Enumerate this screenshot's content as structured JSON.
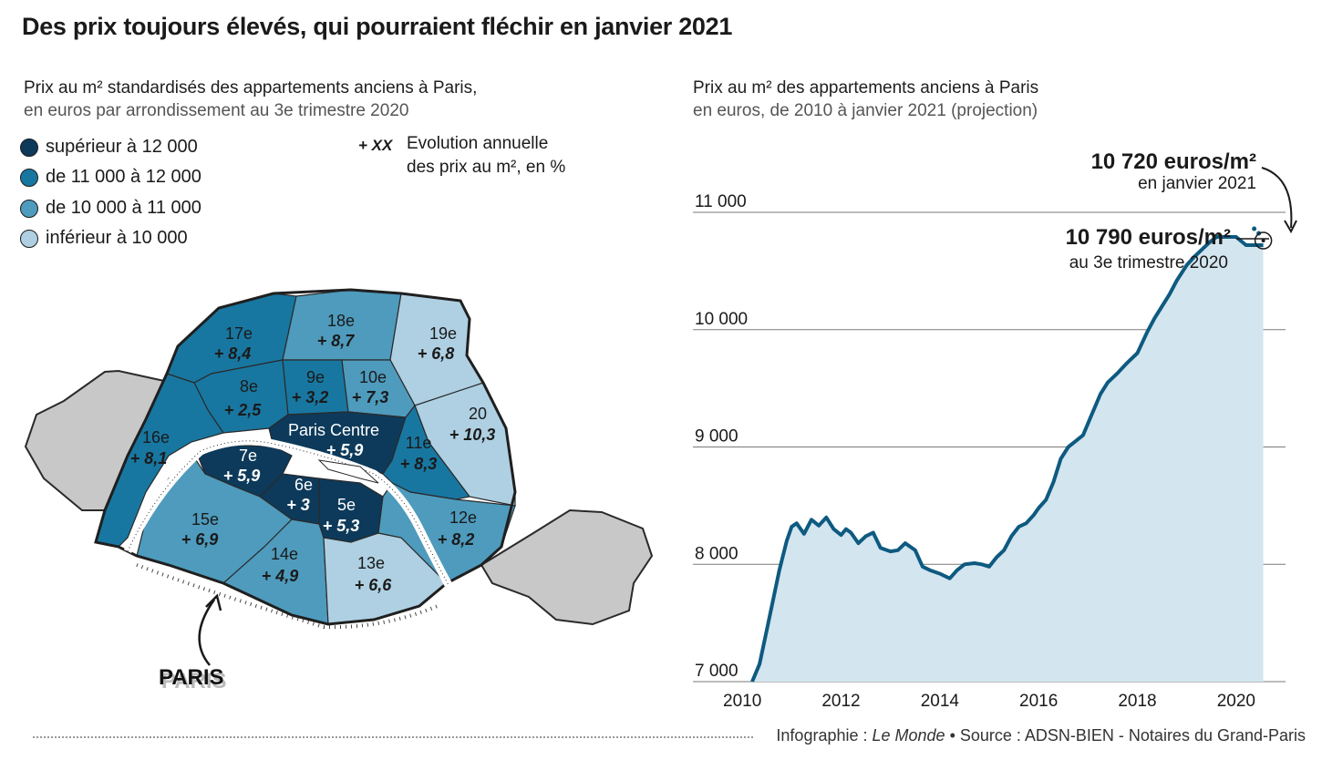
{
  "title": "Des prix toujours élevés, qui pourraient fléchir en janvier 2021",
  "map": {
    "subtitle_line1": "Prix au m² standardisés des appartements anciens à Paris,",
    "subtitle_line2": "en euros par arrondissement au 3e trimestre 2020",
    "legend": [
      {
        "label": "supérieur à 12 000",
        "color": "#0d3a5a"
      },
      {
        "label": "de 11 000 à 12 000",
        "color": "#1877a1"
      },
      {
        "label": "de 10 000 à 11 000",
        "color": "#4e9bbd"
      },
      {
        "label": "inférieur à 10 000",
        "color": "#aed0e2"
      }
    ],
    "evolution_key": "+ XX",
    "evolution_line1": "Evolution annuelle",
    "evolution_line2": "des prix au m², en %",
    "arrondissements": [
      {
        "name": "17e",
        "value": "+ 8,4"
      },
      {
        "name": "18e",
        "value": "+ 8,7"
      },
      {
        "name": "19e",
        "value": "+ 6,8"
      },
      {
        "name": "8e",
        "value": "+ 2,5"
      },
      {
        "name": "9e",
        "value": "+ 3,2"
      },
      {
        "name": "10e",
        "value": "+ 7,3"
      },
      {
        "name": "20",
        "value": "+ 10,3"
      },
      {
        "name": "16e",
        "value": "+ 8,1"
      },
      {
        "name": "Paris Centre",
        "value": "+ 5,9"
      },
      {
        "name": "11e",
        "value": "+ 8,3"
      },
      {
        "name": "7e",
        "value": "+ 5,9"
      },
      {
        "name": "6e",
        "value": "+ 3"
      },
      {
        "name": "5e",
        "value": "+ 5,3"
      },
      {
        "name": "15e",
        "value": "+ 6,9"
      },
      {
        "name": "14e",
        "value": "+ 4,9"
      },
      {
        "name": "13e",
        "value": "+ 6,6"
      },
      {
        "name": "12e",
        "value": "+ 8,2"
      }
    ],
    "city_label": "PARIS"
  },
  "chart_data": {
    "type": "area",
    "title": "Prix au m² des appartements anciens à Paris",
    "subtitle": "en euros, de 2010 à janvier 2021 (projection)",
    "xlabel": "",
    "ylabel": "",
    "xlim": [
      2009.0,
      2021.0
    ],
    "ylim": [
      7000,
      11000
    ],
    "yticks": [
      7000,
      8000,
      9000,
      10000,
      11000
    ],
    "ytick_labels": [
      "7 000",
      "8 000",
      "9 000",
      "10 000",
      "11 000"
    ],
    "xticks": [
      2010,
      2012,
      2014,
      2016,
      2018,
      2020
    ],
    "x": [
      2010.2,
      2010.35,
      2010.5,
      2010.6,
      2010.75,
      2010.9,
      2011.0,
      2011.1,
      2011.25,
      2011.4,
      2011.55,
      2011.7,
      2011.85,
      2012.0,
      2012.1,
      2012.2,
      2012.35,
      2012.5,
      2012.65,
      2012.8,
      2013.0,
      2013.15,
      2013.3,
      2013.5,
      2013.65,
      2013.8,
      2014.0,
      2014.2,
      2014.35,
      2014.5,
      2014.7,
      2014.85,
      2015.0,
      2015.15,
      2015.3,
      2015.45,
      2015.6,
      2015.75,
      2015.9,
      2016.0,
      2016.15,
      2016.3,
      2016.45,
      2016.6,
      2016.75,
      2016.9,
      2017.05,
      2017.25,
      2017.4,
      2017.6,
      2017.8,
      2018.0,
      2018.2,
      2018.35,
      2018.5,
      2018.65,
      2018.8,
      2019.0,
      2019.15,
      2019.3,
      2019.45,
      2019.6,
      2019.8,
      2020.0,
      2020.2,
      2020.4,
      2020.55
    ],
    "values": [
      7000,
      7150,
      7450,
      7650,
      7950,
      8200,
      8320,
      8350,
      8260,
      8380,
      8330,
      8400,
      8300,
      8250,
      8300,
      8270,
      8180,
      8240,
      8270,
      8140,
      8110,
      8120,
      8180,
      8120,
      7980,
      7950,
      7920,
      7880,
      7950,
      8000,
      8010,
      8000,
      7980,
      8060,
      8120,
      8240,
      8320,
      8350,
      8420,
      8480,
      8550,
      8700,
      8900,
      9000,
      9050,
      9100,
      9250,
      9450,
      9550,
      9630,
      9720,
      9800,
      9980,
      10100,
      10200,
      10300,
      10420,
      10550,
      10620,
      10680,
      10740,
      10790,
      10790,
      10790,
      10720,
      10720,
      10720
    ],
    "annotations": [
      {
        "value": "10 720 euros/m²",
        "label": "en janvier 2021"
      },
      {
        "value": "10 790 euros/m²",
        "label": "au 3e trimestre 2020"
      }
    ]
  },
  "footer": {
    "prefix": "Infographie : ",
    "source_name": "Le Monde",
    "suffix": " • Source : ADSN-BIEN - Notaires du Grand-Paris"
  },
  "colors": {
    "line": "#0e5a80",
    "area": "#d3e5ef",
    "grid": "#7a7a7a",
    "neighbor_gray": "#c8c8c8"
  }
}
